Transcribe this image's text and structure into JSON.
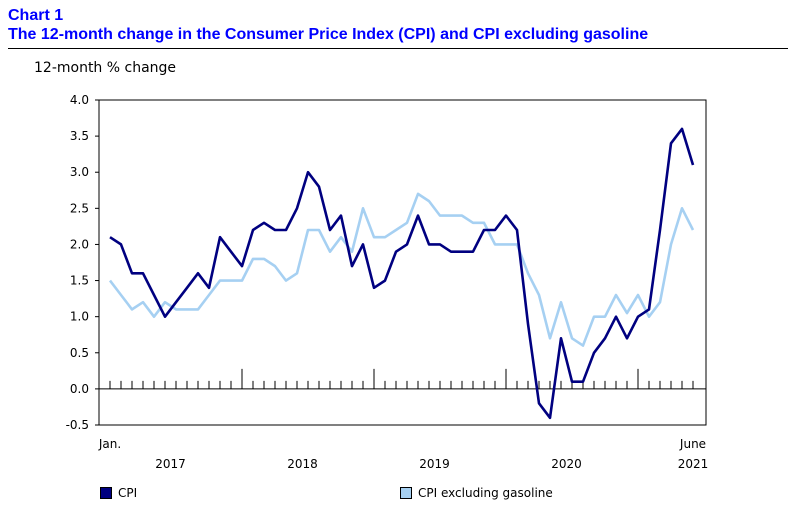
{
  "header": {
    "chart_number": "Chart 1",
    "title": "The 12-month change in the Consumer Price Index (CPI) and CPI excluding gasoline"
  },
  "colors": {
    "title": "#0000ff",
    "cpi": "#000080",
    "cpi_excl_gas": "#a6d0f2",
    "axis": "#000000"
  },
  "chart_data": {
    "type": "line",
    "title": "The 12-month change in the Consumer Price Index (CPI) and CPI excluding gasoline",
    "ylabel": "12-month % change",
    "xlabel": "",
    "ylim": [
      -0.5,
      4.0
    ],
    "yticks": [
      "4.0",
      "3.5",
      "3.0",
      "2.5",
      "2.0",
      "1.5",
      "1.0",
      "0.5",
      "0.0",
      "-0.5"
    ],
    "x_start_label": "Jan.",
    "x_end_label": "June",
    "years": [
      "2017",
      "2018",
      "2019",
      "2020",
      "2021"
    ],
    "series": [
      {
        "name": "CPI",
        "values": [
          2.1,
          2.0,
          1.6,
          1.6,
          1.3,
          1.0,
          1.2,
          1.4,
          1.6,
          1.4,
          2.1,
          1.9,
          1.7,
          2.2,
          2.3,
          2.2,
          2.2,
          2.5,
          3.0,
          2.8,
          2.2,
          2.4,
          1.7,
          2.0,
          1.4,
          1.5,
          1.9,
          2.0,
          2.4,
          2.0,
          2.0,
          1.9,
          1.9,
          1.9,
          2.2,
          2.2,
          2.4,
          2.2,
          0.9,
          -0.2,
          -0.4,
          0.7,
          0.1,
          0.1,
          0.5,
          0.7,
          1.0,
          0.7,
          1.0,
          1.1,
          2.2,
          3.4,
          3.6,
          3.1
        ]
      },
      {
        "name": "CPI excluding gasoline",
        "values": [
          1.5,
          1.3,
          1.1,
          1.2,
          1.0,
          1.2,
          1.1,
          1.1,
          1.1,
          1.3,
          1.5,
          1.5,
          1.5,
          1.8,
          1.8,
          1.7,
          1.5,
          1.6,
          2.2,
          2.2,
          1.9,
          2.1,
          1.9,
          2.5,
          2.1,
          2.1,
          2.2,
          2.3,
          2.7,
          2.6,
          2.4,
          2.4,
          2.4,
          2.3,
          2.3,
          2.0,
          2.0,
          2.0,
          1.6,
          1.3,
          0.7,
          1.2,
          0.7,
          0.6,
          1.0,
          1.0,
          1.3,
          1.05,
          1.3,
          1.0,
          1.2,
          2.0,
          2.5,
          2.2
        ]
      }
    ],
    "legend_position": "bottom"
  }
}
